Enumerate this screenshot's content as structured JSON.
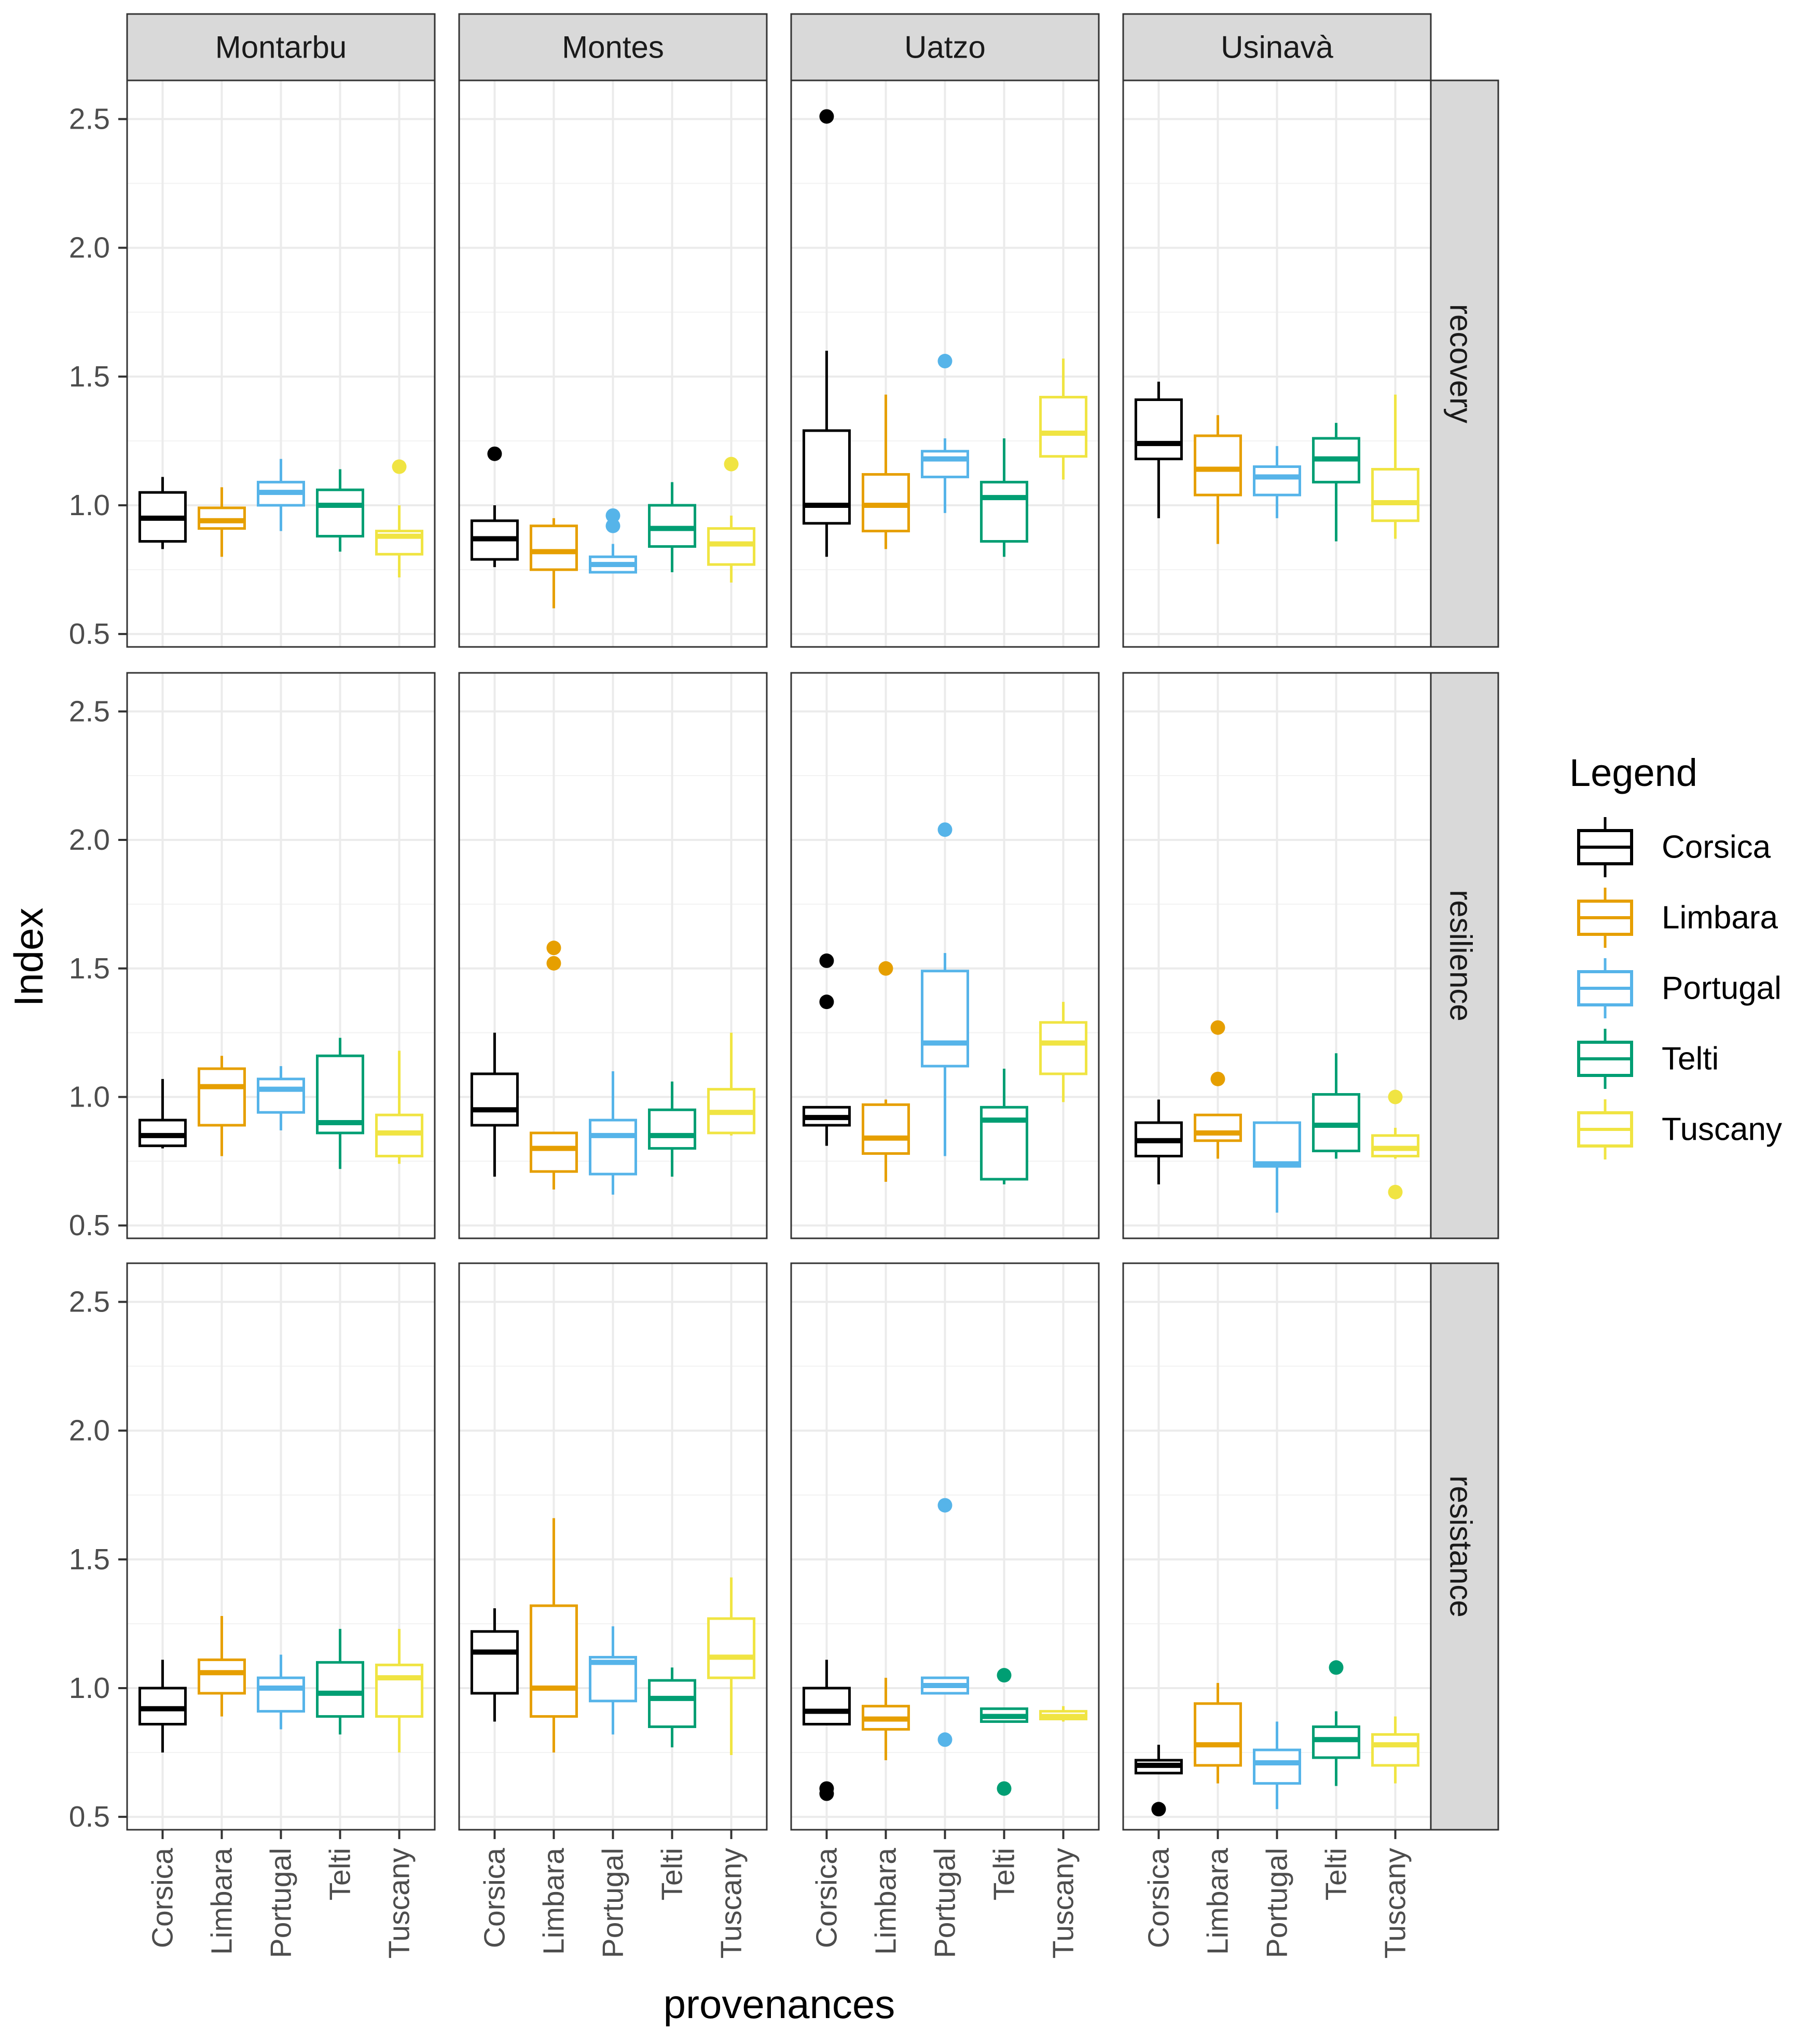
{
  "chart_data": {
    "type": "boxplot",
    "xlabel": "provenances",
    "ylabel": "Index",
    "ylim": [
      0.45,
      2.65
    ],
    "yticks": [
      0.5,
      1.0,
      1.5,
      2.0,
      2.5
    ],
    "ytick_labels": [
      "0.5",
      "1.0",
      "1.5",
      "2.0",
      "2.5"
    ],
    "categories": [
      "Corsica",
      "Limbara",
      "Portugal",
      "Telti",
      "Tuscany"
    ],
    "colors": {
      "Corsica": "#000000",
      "Limbara": "#E69F00",
      "Portugal": "#56B4E9",
      "Telti": "#009E73",
      "Tuscany": "#F0E442"
    },
    "legend": {
      "title": "Legend",
      "entries": [
        "Corsica",
        "Limbara",
        "Portugal",
        "Telti",
        "Tuscany"
      ],
      "position": "right"
    },
    "columns": [
      "Montarbu",
      "Montes",
      "Uatzo",
      "Usinavà"
    ],
    "rows": [
      "recovery",
      "resilience",
      "resistance"
    ],
    "panels": [
      {
        "row": "recovery",
        "col": "Montarbu",
        "boxes": [
          {
            "cat": "Corsica",
            "min": 0.83,
            "q1": 0.86,
            "median": 0.95,
            "q3": 1.05,
            "max": 1.11,
            "outliers": []
          },
          {
            "cat": "Limbara",
            "min": 0.8,
            "q1": 0.91,
            "median": 0.94,
            "q3": 0.99,
            "max": 1.07,
            "outliers": []
          },
          {
            "cat": "Portugal",
            "min": 0.9,
            "q1": 1.0,
            "median": 1.05,
            "q3": 1.09,
            "max": 1.18,
            "outliers": []
          },
          {
            "cat": "Telti",
            "min": 0.82,
            "q1": 0.88,
            "median": 1.0,
            "q3": 1.06,
            "max": 1.14,
            "outliers": []
          },
          {
            "cat": "Tuscany",
            "min": 0.72,
            "q1": 0.81,
            "median": 0.88,
            "q3": 0.9,
            "max": 1.0,
            "outliers": [
              1.15
            ]
          }
        ]
      },
      {
        "row": "recovery",
        "col": "Montes",
        "boxes": [
          {
            "cat": "Corsica",
            "min": 0.76,
            "q1": 0.79,
            "median": 0.87,
            "q3": 0.94,
            "max": 1.0,
            "outliers": [
              1.2
            ]
          },
          {
            "cat": "Limbara",
            "min": 0.6,
            "q1": 0.75,
            "median": 0.82,
            "q3": 0.92,
            "max": 0.95,
            "outliers": []
          },
          {
            "cat": "Portugal",
            "min": 0.74,
            "q1": 0.74,
            "median": 0.77,
            "q3": 0.8,
            "max": 0.85,
            "outliers": [
              0.92,
              0.96
            ]
          },
          {
            "cat": "Telti",
            "min": 0.74,
            "q1": 0.84,
            "median": 0.91,
            "q3": 1.0,
            "max": 1.09,
            "outliers": []
          },
          {
            "cat": "Tuscany",
            "min": 0.7,
            "q1": 0.77,
            "median": 0.85,
            "q3": 0.91,
            "max": 0.96,
            "outliers": [
              1.16
            ]
          }
        ]
      },
      {
        "row": "recovery",
        "col": "Uatzo",
        "boxes": [
          {
            "cat": "Corsica",
            "min": 0.8,
            "q1": 0.93,
            "median": 1.0,
            "q3": 1.29,
            "max": 1.6,
            "outliers": [
              2.51
            ]
          },
          {
            "cat": "Limbara",
            "min": 0.83,
            "q1": 0.9,
            "median": 1.0,
            "q3": 1.12,
            "max": 1.43,
            "outliers": []
          },
          {
            "cat": "Portugal",
            "min": 0.97,
            "q1": 1.11,
            "median": 1.18,
            "q3": 1.21,
            "max": 1.26,
            "outliers": [
              1.56
            ]
          },
          {
            "cat": "Telti",
            "min": 0.8,
            "q1": 0.86,
            "median": 1.03,
            "q3": 1.09,
            "max": 1.26,
            "outliers": []
          },
          {
            "cat": "Tuscany",
            "min": 1.1,
            "q1": 1.19,
            "median": 1.28,
            "q3": 1.42,
            "max": 1.57,
            "outliers": []
          }
        ]
      },
      {
        "row": "recovery",
        "col": "Usinavà",
        "boxes": [
          {
            "cat": "Corsica",
            "min": 0.95,
            "q1": 1.18,
            "median": 1.24,
            "q3": 1.41,
            "max": 1.48,
            "outliers": []
          },
          {
            "cat": "Limbara",
            "min": 0.85,
            "q1": 1.04,
            "median": 1.14,
            "q3": 1.27,
            "max": 1.35,
            "outliers": []
          },
          {
            "cat": "Portugal",
            "min": 0.95,
            "q1": 1.04,
            "median": 1.11,
            "q3": 1.15,
            "max": 1.23,
            "outliers": []
          },
          {
            "cat": "Telti",
            "min": 0.86,
            "q1": 1.09,
            "median": 1.18,
            "q3": 1.26,
            "max": 1.32,
            "outliers": []
          },
          {
            "cat": "Tuscany",
            "min": 0.87,
            "q1": 0.94,
            "median": 1.01,
            "q3": 1.14,
            "max": 1.43,
            "outliers": []
          }
        ]
      },
      {
        "row": "resilience",
        "col": "Montarbu",
        "boxes": [
          {
            "cat": "Corsica",
            "min": 0.8,
            "q1": 0.81,
            "median": 0.85,
            "q3": 0.91,
            "max": 1.07,
            "outliers": []
          },
          {
            "cat": "Limbara",
            "min": 0.77,
            "q1": 0.89,
            "median": 1.04,
            "q3": 1.11,
            "max": 1.16,
            "outliers": []
          },
          {
            "cat": "Portugal",
            "min": 0.87,
            "q1": 0.94,
            "median": 1.03,
            "q3": 1.07,
            "max": 1.12,
            "outliers": []
          },
          {
            "cat": "Telti",
            "min": 0.72,
            "q1": 0.86,
            "median": 0.9,
            "q3": 1.16,
            "max": 1.23,
            "outliers": []
          },
          {
            "cat": "Tuscany",
            "min": 0.74,
            "q1": 0.77,
            "median": 0.86,
            "q3": 0.93,
            "max": 1.18,
            "outliers": []
          }
        ]
      },
      {
        "row": "resilience",
        "col": "Montes",
        "boxes": [
          {
            "cat": "Corsica",
            "min": 0.69,
            "q1": 0.89,
            "median": 0.95,
            "q3": 1.09,
            "max": 1.25,
            "outliers": []
          },
          {
            "cat": "Limbara",
            "min": 0.64,
            "q1": 0.71,
            "median": 0.8,
            "q3": 0.86,
            "max": 0.86,
            "outliers": [
              1.52,
              1.58
            ]
          },
          {
            "cat": "Portugal",
            "min": 0.62,
            "q1": 0.7,
            "median": 0.85,
            "q3": 0.91,
            "max": 1.1,
            "outliers": []
          },
          {
            "cat": "Telti",
            "min": 0.69,
            "q1": 0.8,
            "median": 0.85,
            "q3": 0.95,
            "max": 1.06,
            "outliers": []
          },
          {
            "cat": "Tuscany",
            "min": 0.85,
            "q1": 0.86,
            "median": 0.94,
            "q3": 1.03,
            "max": 1.25,
            "outliers": []
          }
        ]
      },
      {
        "row": "resilience",
        "col": "Uatzo",
        "boxes": [
          {
            "cat": "Corsica",
            "min": 0.81,
            "q1": 0.89,
            "median": 0.92,
            "q3": 0.96,
            "max": 0.96,
            "outliers": [
              1.37,
              1.53
            ]
          },
          {
            "cat": "Limbara",
            "min": 0.67,
            "q1": 0.78,
            "median": 0.84,
            "q3": 0.97,
            "max": 0.99,
            "outliers": [
              1.5
            ]
          },
          {
            "cat": "Portugal",
            "min": 0.77,
            "q1": 1.12,
            "median": 1.21,
            "q3": 1.49,
            "max": 1.56,
            "outliers": [
              2.04
            ]
          },
          {
            "cat": "Telti",
            "min": 0.66,
            "q1": 0.68,
            "median": 0.91,
            "q3": 0.96,
            "max": 1.11,
            "outliers": []
          },
          {
            "cat": "Tuscany",
            "min": 0.98,
            "q1": 1.09,
            "median": 1.21,
            "q3": 1.29,
            "max": 1.37,
            "outliers": []
          }
        ]
      },
      {
        "row": "resilience",
        "col": "Usinavà",
        "boxes": [
          {
            "cat": "Corsica",
            "min": 0.66,
            "q1": 0.77,
            "median": 0.83,
            "q3": 0.9,
            "max": 0.99,
            "outliers": []
          },
          {
            "cat": "Limbara",
            "min": 0.76,
            "q1": 0.83,
            "median": 0.86,
            "q3": 0.93,
            "max": 0.93,
            "outliers": [
              1.07,
              1.27
            ]
          },
          {
            "cat": "Portugal",
            "min": 0.55,
            "q1": 0.73,
            "median": 0.74,
            "q3": 0.9,
            "max": 0.9,
            "outliers": []
          },
          {
            "cat": "Telti",
            "min": 0.76,
            "q1": 0.79,
            "median": 0.89,
            "q3": 1.01,
            "max": 1.17,
            "outliers": []
          },
          {
            "cat": "Tuscany",
            "min": 0.76,
            "q1": 0.77,
            "median": 0.8,
            "q3": 0.85,
            "max": 0.88,
            "outliers": [
              1.0,
              0.63
            ]
          }
        ]
      },
      {
        "row": "resistance",
        "col": "Montarbu",
        "boxes": [
          {
            "cat": "Corsica",
            "min": 0.75,
            "q1": 0.86,
            "median": 0.92,
            "q3": 1.0,
            "max": 1.11,
            "outliers": []
          },
          {
            "cat": "Limbara",
            "min": 0.89,
            "q1": 0.98,
            "median": 1.06,
            "q3": 1.11,
            "max": 1.28,
            "outliers": []
          },
          {
            "cat": "Portugal",
            "min": 0.84,
            "q1": 0.91,
            "median": 1.0,
            "q3": 1.04,
            "max": 1.13,
            "outliers": []
          },
          {
            "cat": "Telti",
            "min": 0.82,
            "q1": 0.89,
            "median": 0.98,
            "q3": 1.1,
            "max": 1.23,
            "outliers": []
          },
          {
            "cat": "Tuscany",
            "min": 0.75,
            "q1": 0.89,
            "median": 1.04,
            "q3": 1.09,
            "max": 1.23,
            "outliers": []
          }
        ]
      },
      {
        "row": "resistance",
        "col": "Montes",
        "boxes": [
          {
            "cat": "Corsica",
            "min": 0.87,
            "q1": 0.98,
            "median": 1.14,
            "q3": 1.22,
            "max": 1.31,
            "outliers": []
          },
          {
            "cat": "Limbara",
            "min": 0.75,
            "q1": 0.89,
            "median": 1.0,
            "q3": 1.32,
            "max": 1.66,
            "outliers": []
          },
          {
            "cat": "Portugal",
            "min": 0.82,
            "q1": 0.95,
            "median": 1.1,
            "q3": 1.12,
            "max": 1.24,
            "outliers": []
          },
          {
            "cat": "Telti",
            "min": 0.77,
            "q1": 0.85,
            "median": 0.96,
            "q3": 1.03,
            "max": 1.08,
            "outliers": []
          },
          {
            "cat": "Tuscany",
            "min": 0.74,
            "q1": 1.04,
            "median": 1.12,
            "q3": 1.27,
            "max": 1.43,
            "outliers": []
          }
        ]
      },
      {
        "row": "resistance",
        "col": "Uatzo",
        "boxes": [
          {
            "cat": "Corsica",
            "min": 0.86,
            "q1": 0.86,
            "median": 0.91,
            "q3": 1.0,
            "max": 1.11,
            "outliers": [
              0.61,
              0.59
            ]
          },
          {
            "cat": "Limbara",
            "min": 0.72,
            "q1": 0.84,
            "median": 0.88,
            "q3": 0.93,
            "max": 1.04,
            "outliers": []
          },
          {
            "cat": "Portugal",
            "min": 0.98,
            "q1": 0.98,
            "median": 1.01,
            "q3": 1.04,
            "max": 1.04,
            "outliers": [
              1.71,
              0.8
            ]
          },
          {
            "cat": "Telti",
            "min": 0.87,
            "q1": 0.87,
            "median": 0.89,
            "q3": 0.92,
            "max": 0.92,
            "outliers": [
              1.05,
              0.61
            ]
          },
          {
            "cat": "Tuscany",
            "min": 0.87,
            "q1": 0.88,
            "median": 0.89,
            "q3": 0.91,
            "max": 0.93,
            "outliers": []
          }
        ]
      },
      {
        "row": "resistance",
        "col": "Usinavà",
        "boxes": [
          {
            "cat": "Corsica",
            "min": 0.67,
            "q1": 0.67,
            "median": 0.7,
            "q3": 0.72,
            "max": 0.78,
            "outliers": [
              0.53
            ]
          },
          {
            "cat": "Limbara",
            "min": 0.63,
            "q1": 0.7,
            "median": 0.78,
            "q3": 0.94,
            "max": 1.02,
            "outliers": []
          },
          {
            "cat": "Portugal",
            "min": 0.53,
            "q1": 0.63,
            "median": 0.71,
            "q3": 0.76,
            "max": 0.87,
            "outliers": []
          },
          {
            "cat": "Telti",
            "min": 0.62,
            "q1": 0.73,
            "median": 0.8,
            "q3": 0.85,
            "max": 0.91,
            "outliers": [
              1.08
            ]
          },
          {
            "cat": "Tuscany",
            "min": 0.63,
            "q1": 0.7,
            "median": 0.78,
            "q3": 0.82,
            "max": 0.89,
            "outliers": []
          }
        ]
      }
    ]
  }
}
